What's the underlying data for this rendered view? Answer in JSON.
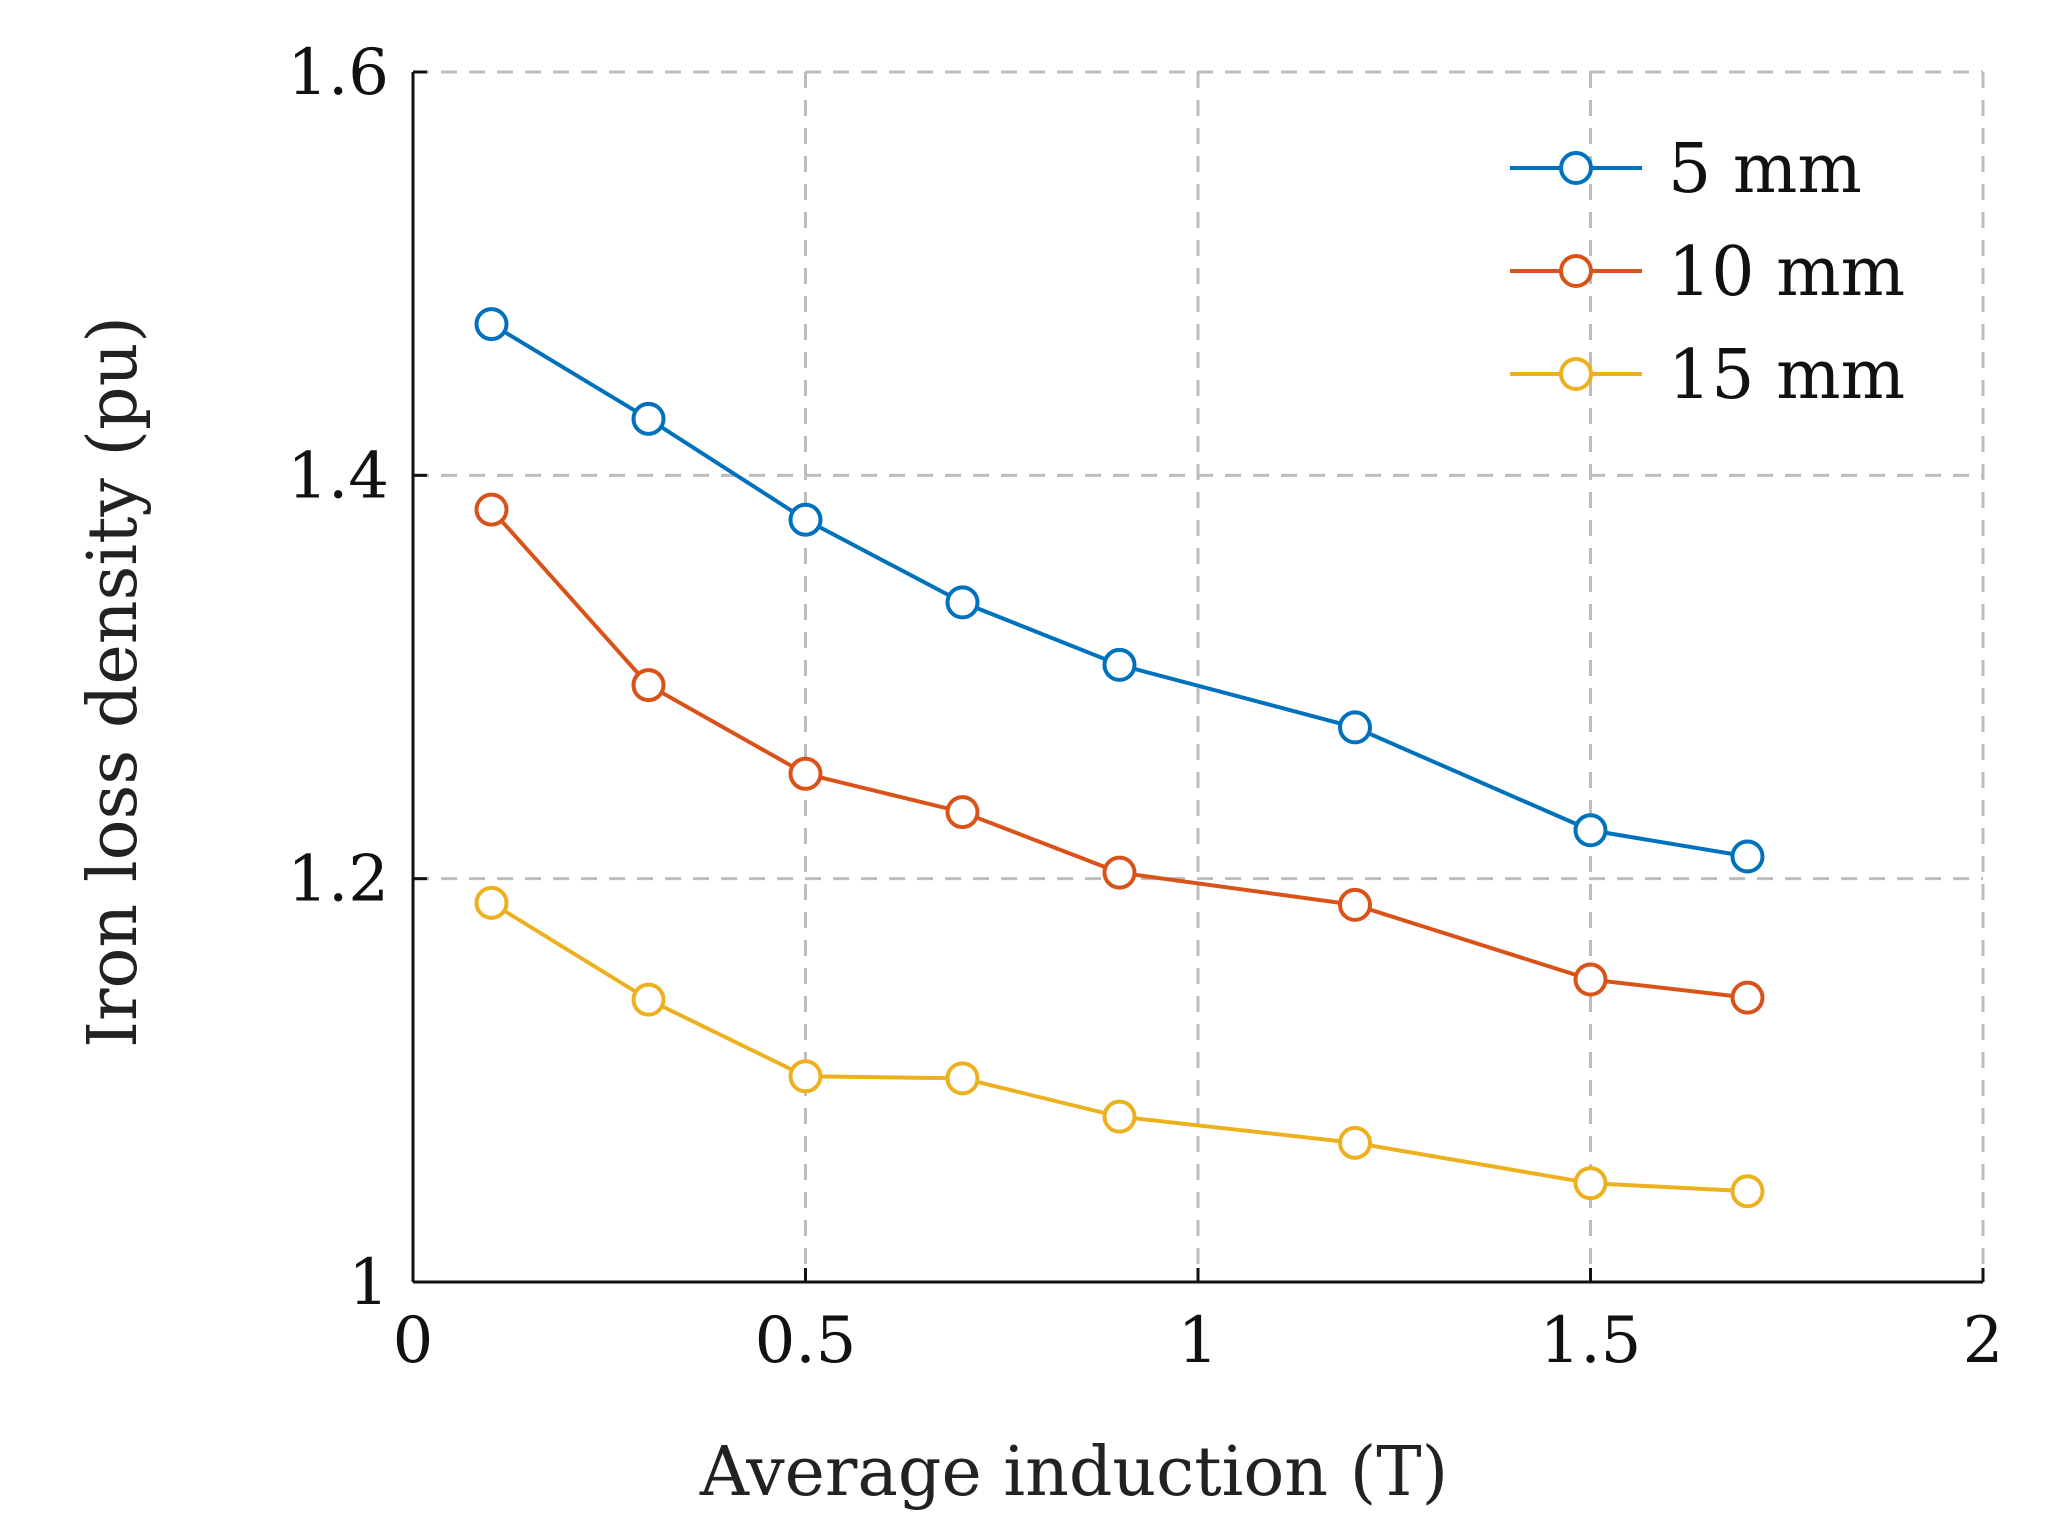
{
  "chart_data": {
    "type": "line",
    "title": "",
    "xlabel": "Average induction (T)",
    "ylabel": "Iron loss density (pu)",
    "xlim": [
      0,
      2
    ],
    "ylim": [
      1,
      1.6
    ],
    "xticks": [
      0,
      0.5,
      1,
      1.5,
      2
    ],
    "xtick_labels": [
      "0",
      "0.5",
      "1",
      "1.5",
      "2"
    ],
    "yticks": [
      1,
      1.2,
      1.4,
      1.6
    ],
    "ytick_labels": [
      "1",
      "1.2",
      "1.4",
      "1.6"
    ],
    "grid": true,
    "legend_position": "top-right",
    "x": [
      0.1,
      0.3,
      0.5,
      0.7,
      0.9,
      1.2,
      1.5,
      1.7
    ],
    "series": [
      {
        "name": "5 mm",
        "color": "#0072BD",
        "values": [
          1.475,
          1.428,
          1.378,
          1.337,
          1.306,
          1.275,
          1.224,
          1.211
        ]
      },
      {
        "name": "10 mm",
        "color": "#D95319",
        "values": [
          1.383,
          1.296,
          1.252,
          1.233,
          1.203,
          1.187,
          1.15,
          1.141
        ]
      },
      {
        "name": "15 mm",
        "color": "#EDB120",
        "values": [
          1.188,
          1.14,
          1.102,
          1.101,
          1.082,
          1.069,
          1.049,
          1.045
        ]
      }
    ]
  }
}
